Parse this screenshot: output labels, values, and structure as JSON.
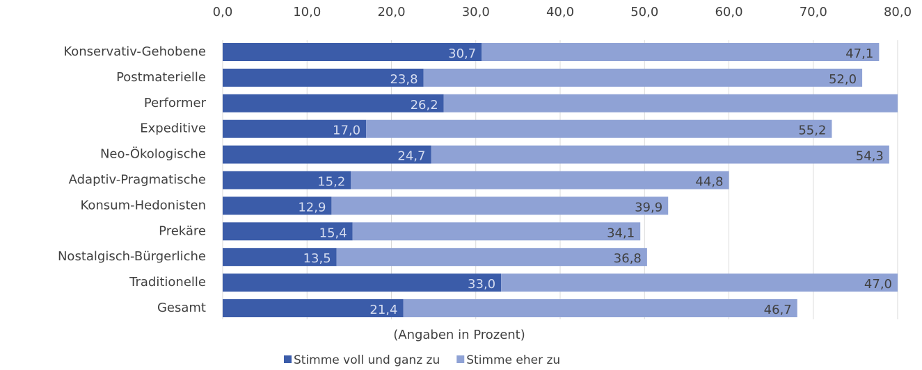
{
  "chart_data": {
    "type": "stacked_barh",
    "categories": [
      "Konservativ-Gehobene",
      "Postmaterielle",
      "Performer",
      "Expeditive",
      "Neo-Ökologische",
      "Adaptiv-Pragmatische",
      "Konsum-Hedonisten",
      "Prekäre",
      "Nostalgisch-Bürgerliche",
      "Traditionelle",
      "Gesamt"
    ],
    "series": [
      {
        "name": "Stimme voll und ganz zu",
        "color": "#3b5ca9",
        "label_color": "#d6ddf0",
        "values": [
          30.7,
          23.8,
          26.2,
          17.0,
          24.7,
          15.2,
          12.9,
          15.4,
          13.5,
          33.0,
          21.4
        ],
        "value_labels": [
          "30,7",
          "23,8",
          "26,2",
          "17,0",
          "24,7",
          "15,2",
          "12,9",
          "15,4",
          "13,5",
          "33,0",
          "21,4"
        ]
      },
      {
        "name": "Stimme eher zu",
        "color": "#8fa2d5",
        "label_color": "#404040",
        "values": [
          47.1,
          52.0,
          53.8,
          55.2,
          54.3,
          44.8,
          39.9,
          34.1,
          36.8,
          47.0,
          46.7
        ],
        "value_labels": [
          "47,1",
          "52,0",
          null,
          "55,2",
          "54,3",
          "44,8",
          "39,9",
          "34,1",
          "36,8",
          "47,0",
          "46,7"
        ]
      }
    ],
    "xlim": [
      0,
      80
    ],
    "xticks": [
      {
        "value": 0,
        "label": "0,0"
      },
      {
        "value": 10,
        "label": "10,0"
      },
      {
        "value": 20,
        "label": "20,0"
      },
      {
        "value": 30,
        "label": "30,0"
      },
      {
        "value": 40,
        "label": "40,0"
      },
      {
        "value": 50,
        "label": "50,0"
      },
      {
        "value": 60,
        "label": "60,0"
      },
      {
        "value": 70,
        "label": "70,0"
      },
      {
        "value": 80,
        "label": "80,0"
      }
    ],
    "grid": true,
    "x_label": "(Angaben in Prozent)"
  }
}
